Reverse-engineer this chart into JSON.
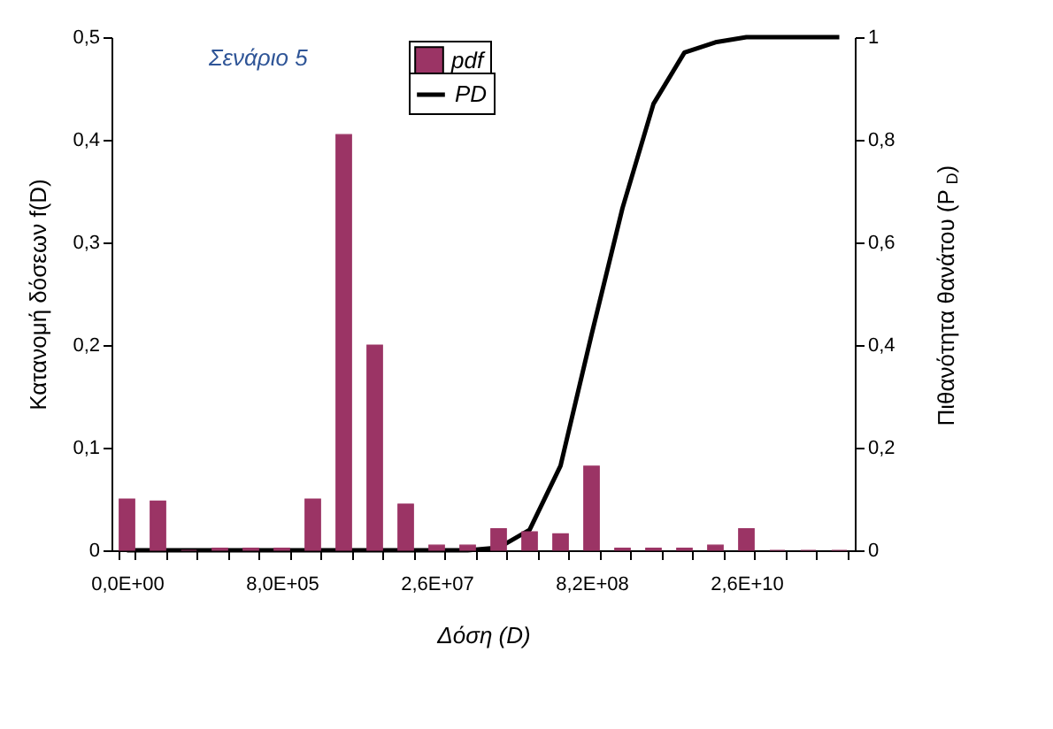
{
  "chart_data": {
    "type": "bar",
    "categories": [
      "0,0E+00",
      null,
      null,
      null,
      null,
      "8,0E+05",
      null,
      null,
      null,
      null,
      "2,6E+07",
      null,
      null,
      null,
      null,
      "8,2E+08",
      null,
      null,
      null,
      null,
      "2,6E+10",
      null,
      null,
      null
    ],
    "series": [
      {
        "name": "pdf",
        "type": "bar",
        "color": "#9b3465",
        "values": [
          0.05,
          0.048,
          0,
          0.002,
          0.002,
          0.002,
          0.05,
          0.405,
          0.2,
          0.045,
          0.005,
          0.005,
          0.021,
          0.018,
          0.016,
          0.082,
          0.002,
          0.002,
          0.002,
          0.005,
          0.021,
          0,
          0,
          0
        ]
      },
      {
        "name": "PD",
        "type": "line",
        "axis": "y2",
        "color": "#000000",
        "values": [
          0,
          0,
          0,
          0,
          0,
          0,
          0,
          0,
          0,
          0,
          0,
          0,
          0.005,
          0.04,
          0.165,
          0.42,
          0.667,
          0.87,
          0.97,
          0.99,
          1,
          1,
          1,
          1
        ]
      }
    ],
    "xlabel": "Δόση (D)",
    "ylabel": "Κατανομή δόσεων f(D)",
    "y2label": "Πιθανότητα θανάτου (P$_{D}$)",
    "annotations": [
      "Σενάριο 5"
    ],
    "ylim": [
      0,
      0.5
    ],
    "yticks": [
      0,
      {
        "value": 0.1,
        "label": "0,1"
      },
      {
        "value": 0.2,
        "label": "0,2"
      },
      {
        "value": 0.3,
        "label": "0,3"
      },
      {
        "value": 0.4,
        "label": "0,4"
      },
      {
        "value": 0.5,
        "label": "0,5"
      }
    ],
    "y2lim": [
      0,
      1
    ],
    "y2ticks": [
      0,
      {
        "value": 0.2,
        "label": "0,2"
      },
      {
        "value": 0.4,
        "label": "0,4"
      },
      {
        "value": 0.6,
        "label": "0,6"
      },
      {
        "value": 0.8,
        "label": "0,8"
      },
      1
    ],
    "legend": "top",
    "grid": false,
    "marker": "none",
    "line_style": "solid"
  }
}
